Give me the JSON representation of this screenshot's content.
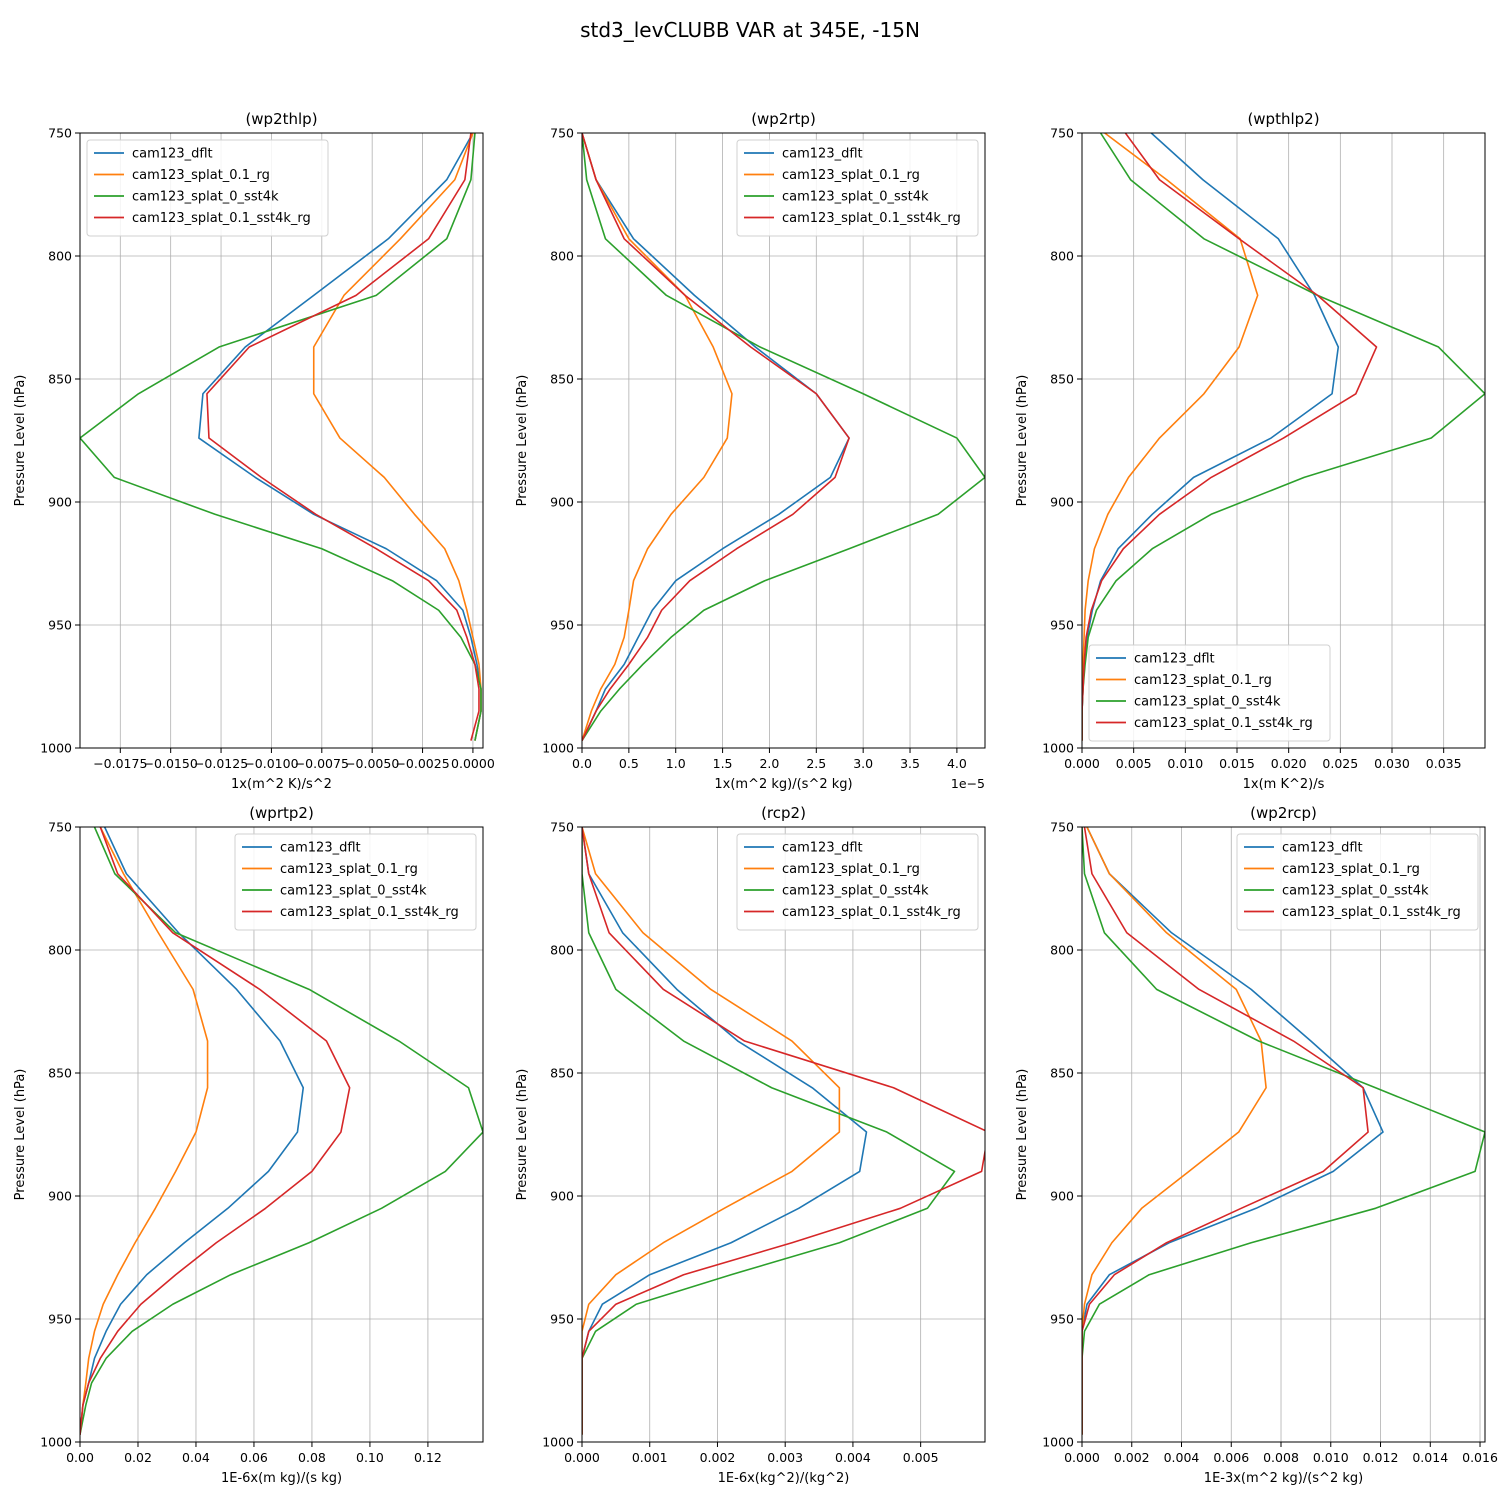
{
  "figure_title": "std3_levCLUBB VAR at 345E, -15N",
  "chart_data": [
    {
      "type": "line",
      "title": "(wp2thlp)",
      "xlabel": "1x(m^2 K)/s^2",
      "ylabel": "Pressure Level (hPa)",
      "xlim": [
        -0.0195,
        0.0005
      ],
      "ylim": [
        1000,
        750
      ],
      "xticks": [
        -0.0175,
        -0.015,
        -0.0125,
        -0.01,
        -0.0075,
        -0.005,
        -0.0025,
        0.0
      ],
      "xtick_labels": [
        "−0.0175",
        "−0.0150",
        "−0.0125",
        "−0.0100",
        "−0.0075",
        "−0.0050",
        "−0.0025",
        "0.0000"
      ],
      "yticks": [
        750,
        800,
        850,
        900,
        950,
        1000
      ],
      "ytick_labels": [
        "750",
        "800",
        "850",
        "900",
        "950",
        "1000"
      ],
      "grid": true,
      "legend_loc": "upper-left",
      "levels": [
        750,
        769,
        793,
        816,
        837,
        856,
        874,
        890,
        905,
        919,
        932,
        944,
        955,
        966,
        976,
        985,
        997
      ],
      "series": [
        {
          "name": "cam123_dflt",
          "color": "#1f77b4",
          "values": [
            0.0,
            -0.0013,
            -0.0042,
            -0.0079,
            -0.0113,
            -0.0134,
            -0.0136,
            -0.0108,
            -0.0079,
            -0.0043,
            -0.0018,
            -0.0005,
            -0.0001,
            0.0002,
            0.0004,
            0.0004,
            0.0001
          ]
        },
        {
          "name": "cam123_splat_0.1_rg",
          "color": "#ff7f0e",
          "values": [
            0.0,
            -0.0009,
            -0.0036,
            -0.0064,
            -0.0079,
            -0.0079,
            -0.0066,
            -0.0044,
            -0.0029,
            -0.0014,
            -0.0007,
            -0.0003,
            0.0,
            0.0003,
            0.0004,
            0.0004,
            0.0001
          ]
        },
        {
          "name": "cam123_splat_0_sst4k",
          "color": "#2ca02c",
          "values": [
            0.0001,
            -0.0001,
            -0.0013,
            -0.0048,
            -0.0126,
            -0.0166,
            -0.0195,
            -0.0178,
            -0.0128,
            -0.0075,
            -0.004,
            -0.0017,
            -0.0006,
            0.0001,
            0.0004,
            0.0004,
            0.0001
          ]
        },
        {
          "name": "cam123_splat_0.1_sst4k_rg",
          "color": "#d62728",
          "values": [
            -0.0001,
            -0.0004,
            -0.0022,
            -0.0058,
            -0.0111,
            -0.0132,
            -0.0131,
            -0.0105,
            -0.0078,
            -0.0048,
            -0.0022,
            -0.0008,
            -0.0003,
            0.0001,
            0.0003,
            0.0003,
            -0.0001
          ]
        }
      ]
    },
    {
      "type": "line",
      "title": "(wp2rtp)",
      "xlabel": "1x(m^2 kg)/(s^2 kg)",
      "x_offset_label": "1e−5",
      "ylabel": "Pressure Level (hPa)",
      "xlim": [
        0.0,
        4.3e-05
      ],
      "ylim": [
        1000,
        750
      ],
      "xticks": [
        0.0,
        5e-06,
        1e-05,
        1.5e-05,
        2e-05,
        2.5e-05,
        3e-05,
        3.5e-05,
        4e-05
      ],
      "xtick_labels": [
        "0.0",
        "0.5",
        "1.0",
        "1.5",
        "2.0",
        "2.5",
        "3.0",
        "3.5",
        "4.0"
      ],
      "yticks": [
        750,
        800,
        850,
        900,
        950,
        1000
      ],
      "ytick_labels": [
        "750",
        "800",
        "850",
        "900",
        "950",
        "1000"
      ],
      "grid": true,
      "legend_loc": "upper-right",
      "levels": [
        750,
        769,
        793,
        816,
        837,
        856,
        874,
        890,
        905,
        919,
        932,
        944,
        955,
        966,
        976,
        985,
        997
      ],
      "series": [
        {
          "name": "cam123_dflt",
          "color": "#1f77b4",
          "values": [
            0.0,
            1.5e-06,
            5.5e-06,
            1.2e-05,
            1.85e-05,
            2.5e-05,
            2.85e-05,
            2.65e-05,
            2.1e-05,
            1.5e-05,
            1e-05,
            7.5e-06,
            6e-06,
            4.5e-06,
            2.5e-06,
            1.5e-06,
            0.0
          ]
        },
        {
          "name": "cam123_splat_0.1_rg",
          "color": "#ff7f0e",
          "values": [
            0.0,
            1.5e-06,
            5e-06,
            1.1e-05,
            1.4e-05,
            1.6e-05,
            1.55e-05,
            1.3e-05,
            9.5e-06,
            7e-06,
            5.5e-06,
            5e-06,
            4.5e-06,
            3.5e-06,
            2e-06,
            1e-06,
            0.0
          ]
        },
        {
          "name": "cam123_splat_0_sst4k",
          "color": "#2ca02c",
          "values": [
            0.0,
            5e-07,
            2.5e-06,
            9e-06,
            1.9e-05,
            3e-05,
            4e-05,
            4.3e-05,
            3.8e-05,
            2.85e-05,
            1.95e-05,
            1.3e-05,
            9.5e-06,
            6.5e-06,
            4e-06,
            2e-06,
            0.0
          ]
        },
        {
          "name": "cam123_splat_0.1_sst4k_rg",
          "color": "#d62728",
          "values": [
            0.0,
            1.5e-06,
            4.5e-06,
            1.1e-05,
            1.8e-05,
            2.5e-05,
            2.85e-05,
            2.7e-05,
            2.25e-05,
            1.65e-05,
            1.15e-05,
            8.5e-06,
            7e-06,
            5e-06,
            3e-06,
            1.5e-06,
            0.0
          ]
        }
      ]
    },
    {
      "type": "line",
      "title": "(wpthlp2)",
      "xlabel": "1x(m K^2)/s",
      "ylabel": "Pressure Level (hPa)",
      "xlim": [
        0.0,
        0.039
      ],
      "ylim": [
        1000,
        750
      ],
      "xticks": [
        0.0,
        0.005,
        0.01,
        0.015,
        0.02,
        0.025,
        0.03,
        0.035
      ],
      "xtick_labels": [
        "0.000",
        "0.005",
        "0.010",
        "0.015",
        "0.020",
        "0.025",
        "0.030",
        "0.035"
      ],
      "yticks": [
        750,
        800,
        850,
        900,
        950,
        1000
      ],
      "ytick_labels": [
        "750",
        "800",
        "850",
        "900",
        "950",
        "1000"
      ],
      "grid": true,
      "legend_loc": "lower-left",
      "levels": [
        750,
        769,
        793,
        816,
        837,
        856,
        874,
        890,
        905,
        919,
        932,
        944,
        955,
        966,
        976,
        985,
        997
      ],
      "series": [
        {
          "name": "cam123_dflt",
          "color": "#1f77b4",
          "values": [
            0.0067,
            0.0117,
            0.019,
            0.0225,
            0.0248,
            0.0242,
            0.0183,
            0.0108,
            0.0068,
            0.0035,
            0.0018,
            0.001,
            0.0005,
            0.0002,
            0.0001,
            0.0,
            0.0
          ]
        },
        {
          "name": "cam123_splat_0.1_rg",
          "color": "#ff7f0e",
          "values": [
            0.0022,
            0.0082,
            0.0153,
            0.017,
            0.0152,
            0.0118,
            0.0075,
            0.0045,
            0.0025,
            0.0012,
            0.0006,
            0.0003,
            0.0002,
            0.0001,
            0.0,
            0.0,
            0.0
          ]
        },
        {
          "name": "cam123_splat_0_sst4k",
          "color": "#2ca02c",
          "values": [
            0.0018,
            0.0047,
            0.0118,
            0.0228,
            0.0345,
            0.039,
            0.0338,
            0.0215,
            0.0125,
            0.0068,
            0.0033,
            0.0014,
            0.0006,
            0.0003,
            0.0001,
            0.0,
            0.0
          ]
        },
        {
          "name": "cam123_splat_0.1_sst4k_rg",
          "color": "#d62728",
          "values": [
            0.0042,
            0.0075,
            0.0152,
            0.0228,
            0.0285,
            0.0265,
            0.0195,
            0.0125,
            0.0075,
            0.004,
            0.0019,
            0.0009,
            0.0004,
            0.0002,
            0.0001,
            0.0,
            0.0
          ]
        }
      ]
    },
    {
      "type": "line",
      "title": "(wprtp2)",
      "xlabel": "1E-6x(m kg)/(s kg)",
      "ylabel": "Pressure Level (hPa)",
      "xlim": [
        0.0,
        0.139
      ],
      "ylim": [
        1000,
        750
      ],
      "xticks": [
        0.0,
        0.02,
        0.04,
        0.06,
        0.08,
        0.1,
        0.12
      ],
      "xtick_labels": [
        "0.00",
        "0.02",
        "0.04",
        "0.06",
        "0.08",
        "0.10",
        "0.12"
      ],
      "yticks": [
        750,
        800,
        850,
        900,
        950,
        1000
      ],
      "ytick_labels": [
        "750",
        "800",
        "850",
        "900",
        "950",
        "1000"
      ],
      "grid": true,
      "legend_loc": "upper-right",
      "levels": [
        750,
        769,
        793,
        816,
        837,
        856,
        874,
        890,
        905,
        919,
        932,
        944,
        955,
        966,
        976,
        985,
        997
      ],
      "series": [
        {
          "name": "cam123_dflt",
          "color": "#1f77b4",
          "values": [
            0.0085,
            0.016,
            0.034,
            0.054,
            0.069,
            0.077,
            0.075,
            0.065,
            0.051,
            0.036,
            0.023,
            0.014,
            0.009,
            0.005,
            0.003,
            0.001,
            0.0
          ]
        },
        {
          "name": "cam123_splat_0.1_rg",
          "color": "#ff7f0e",
          "values": [
            0.007,
            0.015,
            0.027,
            0.039,
            0.044,
            0.044,
            0.04,
            0.033,
            0.026,
            0.019,
            0.013,
            0.008,
            0.005,
            0.003,
            0.002,
            0.001,
            0.0
          ]
        },
        {
          "name": "cam123_splat_0_sst4k",
          "color": "#2ca02c",
          "values": [
            0.005,
            0.012,
            0.033,
            0.079,
            0.11,
            0.134,
            0.139,
            0.126,
            0.104,
            0.079,
            0.052,
            0.032,
            0.018,
            0.009,
            0.004,
            0.002,
            0.0
          ]
        },
        {
          "name": "cam123_splat_0.1_sst4k_rg",
          "color": "#d62728",
          "values": [
            0.007,
            0.013,
            0.032,
            0.062,
            0.085,
            0.093,
            0.09,
            0.08,
            0.064,
            0.047,
            0.033,
            0.021,
            0.013,
            0.007,
            0.003,
            0.001,
            0.0
          ]
        }
      ]
    },
    {
      "type": "line",
      "title": "(rcp2)",
      "xlabel": "1E-6x(kg^2)/(kg^2)",
      "ylabel": "Pressure Level (hPa)",
      "xlim": [
        0.0,
        0.00595
      ],
      "ylim": [
        1000,
        750
      ],
      "xticks": [
        0.0,
        0.001,
        0.002,
        0.003,
        0.004,
        0.005
      ],
      "xtick_labels": [
        "0.000",
        "0.001",
        "0.002",
        "0.003",
        "0.004",
        "0.005"
      ],
      "yticks": [
        750,
        800,
        850,
        900,
        950,
        1000
      ],
      "ytick_labels": [
        "750",
        "800",
        "850",
        "900",
        "950",
        "1000"
      ],
      "grid": true,
      "legend_loc": "upper-right",
      "levels": [
        750,
        769,
        793,
        816,
        837,
        856,
        874,
        890,
        905,
        919,
        932,
        944,
        955,
        966,
        976,
        985,
        997
      ],
      "series": [
        {
          "name": "cam123_dflt",
          "color": "#1f77b4",
          "values": [
            0.0,
            0.0001,
            0.0006,
            0.0014,
            0.0023,
            0.0034,
            0.0042,
            0.0041,
            0.0032,
            0.0022,
            0.001,
            0.0003,
            0.0001,
            0.0,
            0.0,
            0.0,
            0.0
          ]
        },
        {
          "name": "cam123_splat_0.1_rg",
          "color": "#ff7f0e",
          "values": [
            0.0,
            0.0002,
            0.0009,
            0.0019,
            0.0031,
            0.0038,
            0.0038,
            0.0031,
            0.0021,
            0.0012,
            0.0005,
            0.0001,
            0.0,
            0.0,
            0.0,
            0.0,
            0.0
          ]
        },
        {
          "name": "cam123_splat_0_sst4k",
          "color": "#2ca02c",
          "values": [
            0.0,
            0.0,
            0.0001,
            0.0005,
            0.0015,
            0.0028,
            0.0045,
            0.0055,
            0.0051,
            0.0038,
            0.0022,
            0.0008,
            0.0002,
            0.0,
            0.0,
            0.0,
            0.0
          ]
        },
        {
          "name": "cam123_splat_0.1_sst4k_rg",
          "color": "#d62728",
          "values": [
            0.0,
            0.0001,
            0.0004,
            0.0012,
            0.0024,
            0.0046,
            0.006,
            0.0059,
            0.0047,
            0.0031,
            0.0015,
            0.0005,
            0.0001,
            0.0,
            0.0,
            0.0,
            0.0
          ]
        }
      ]
    },
    {
      "type": "line",
      "title": "(wp2rcp)",
      "xlabel": "1E-3x(m^2 kg)/(s^2 kg)",
      "ylabel": "Pressure Level (hPa)",
      "xlim": [
        0.0,
        0.0162
      ],
      "ylim": [
        1000,
        750
      ],
      "xticks": [
        0.0,
        0.002,
        0.004,
        0.006,
        0.008,
        0.01,
        0.012,
        0.014,
        0.016
      ],
      "xtick_labels": [
        "0.000",
        "0.002",
        "0.004",
        "0.006",
        "0.008",
        "0.010",
        "0.012",
        "0.014",
        "0.016"
      ],
      "yticks": [
        750,
        800,
        850,
        900,
        950,
        1000
      ],
      "ytick_labels": [
        "750",
        "800",
        "850",
        "900",
        "950",
        "1000"
      ],
      "grid": true,
      "legend_loc": "upper-right",
      "levels": [
        750,
        769,
        793,
        816,
        837,
        856,
        874,
        890,
        905,
        919,
        932,
        944,
        955,
        966,
        976,
        985,
        997
      ],
      "series": [
        {
          "name": "cam123_dflt",
          "color": "#1f77b4",
          "values": [
            0.0002,
            0.0011,
            0.0036,
            0.0068,
            0.0092,
            0.0113,
            0.0121,
            0.0101,
            0.007,
            0.0035,
            0.0011,
            0.0002,
            0.0,
            0.0,
            0.0,
            0.0,
            0.0
          ]
        },
        {
          "name": "cam123_splat_0.1_rg",
          "color": "#ff7f0e",
          "values": [
            0.0002,
            0.0011,
            0.0034,
            0.0062,
            0.0072,
            0.0074,
            0.0063,
            0.0043,
            0.0024,
            0.0012,
            0.0004,
            0.0001,
            0.0,
            0.0,
            0.0,
            0.0,
            0.0
          ]
        },
        {
          "name": "cam123_splat_0_sst4k",
          "color": "#2ca02c",
          "values": [
            0.0,
            0.0001,
            0.0009,
            0.003,
            0.0071,
            0.0118,
            0.0162,
            0.0158,
            0.0118,
            0.0068,
            0.0027,
            0.0007,
            0.0001,
            0.0,
            0.0,
            0.0,
            0.0
          ]
        },
        {
          "name": "cam123_splat_0.1_sst4k_rg",
          "color": "#d62728",
          "values": [
            0.0001,
            0.0004,
            0.0018,
            0.0047,
            0.0085,
            0.0113,
            0.0115,
            0.0097,
            0.0064,
            0.0034,
            0.0013,
            0.0003,
            0.0,
            0.0,
            0.0,
            0.0,
            0.0
          ]
        }
      ]
    }
  ]
}
